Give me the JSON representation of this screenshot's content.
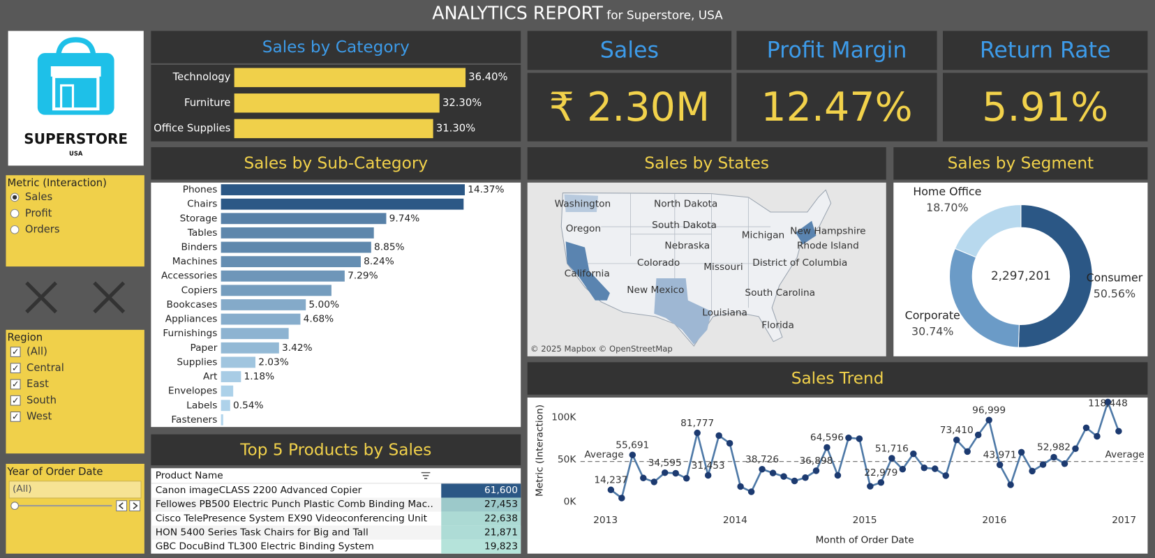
{
  "header": {
    "title": "ANALYTICS REPORT",
    "subtitle": "for Superstore, USA"
  },
  "logo": {
    "brand": "SUPERSTORE",
    "country": "USA"
  },
  "filters": {
    "metric": {
      "title": "Metric (Interaction)",
      "options": [
        "Sales",
        "Profit",
        "Orders"
      ],
      "selected": 0
    },
    "region": {
      "title": "Region",
      "options": [
        "(All)",
        "Central",
        "East",
        "South",
        "West"
      ],
      "checked": [
        true,
        true,
        true,
        true,
        true
      ]
    },
    "year": {
      "title": "Year of Order Date",
      "value": "(All)"
    }
  },
  "kpis": [
    {
      "title": "Sales",
      "value": "₹ 2.30M"
    },
    {
      "title": "Profit Margin",
      "value": "12.47%"
    },
    {
      "title": "Return Rate",
      "value": "5.91%"
    }
  ],
  "chart_data": [
    {
      "type": "bar",
      "title": "Sales by Category",
      "categories": [
        "Technology",
        "Furniture",
        "Office Supplies"
      ],
      "values": [
        36.4,
        32.3,
        31.3
      ],
      "value_labels": [
        "36.40%",
        "32.30%",
        "31.30%"
      ],
      "color": "#f0d04a"
    },
    {
      "type": "bar",
      "title": "Sales by Sub-Category",
      "categories": [
        "Phones",
        "Chairs",
        "Storage",
        "Tables",
        "Binders",
        "Machines",
        "Accessories",
        "Copiers",
        "Bookcases",
        "Appliances",
        "Furnishings",
        "Paper",
        "Supplies",
        "Art",
        "Envelopes",
        "Labels",
        "Fasteners"
      ],
      "values": [
        14.37,
        14.3,
        9.74,
        9.01,
        8.85,
        8.24,
        7.29,
        6.51,
        5.0,
        4.68,
        3.99,
        3.42,
        2.03,
        1.18,
        0.72,
        0.54,
        0.13
      ],
      "value_labels": [
        "14.37%",
        null,
        "9.74%",
        null,
        "8.85%",
        "8.24%",
        "7.29%",
        null,
        "5.00%",
        "4.68%",
        null,
        "3.42%",
        "2.03%",
        "1.18%",
        null,
        "0.54%",
        null
      ],
      "color_range": [
        "#b3d7ee",
        "#2b5785"
      ]
    },
    {
      "type": "map",
      "title": "Sales by States",
      "labels": [
        "Washington",
        "North Dakota",
        "Oregon",
        "South Dakota",
        "New Hampshire",
        "Michigan",
        "Rhode Island",
        "Nebraska",
        "Colorado",
        "District of Columbia",
        "Missouri",
        "California",
        "New Mexico",
        "South Carolina",
        "Louisiana",
        "Florida"
      ],
      "attribution": "© 2025 Mapbox © OpenStreetMap"
    },
    {
      "type": "donut",
      "title": "Sales by Segment",
      "categories": [
        "Consumer",
        "Corporate",
        "Home Office"
      ],
      "values": [
        50.56,
        30.74,
        18.7
      ],
      "value_labels": [
        "50.56%",
        "30.74%",
        "18.70%"
      ],
      "colors": [
        "#2b5785",
        "#6b9bc7",
        "#b8d9ee"
      ],
      "center": {
        "value": 2297201,
        "label": "2,297,201"
      }
    },
    {
      "type": "line",
      "title": "Sales Trend",
      "x_label": "Month of Order Date",
      "y_label": "Metric (Interaction)",
      "x": [
        2013.0417,
        2013.125,
        2013.2083,
        2013.2917,
        2013.375,
        2013.4583,
        2013.5417,
        2013.625,
        2013.7083,
        2013.7917,
        2013.875,
        2013.9583,
        2014.0417,
        2014.125,
        2014.2083,
        2014.2917,
        2014.375,
        2014.4583,
        2014.5417,
        2014.625,
        2014.7083,
        2014.7917,
        2014.875,
        2014.9583,
        2015.0417,
        2015.125,
        2015.2083,
        2015.2917,
        2015.375,
        2015.4583,
        2015.5417,
        2015.625,
        2015.7083,
        2015.7917,
        2015.875,
        2015.9583,
        2016.0417,
        2016.125,
        2016.2083,
        2016.2917,
        2016.375,
        2016.4583,
        2016.5417,
        2016.625,
        2016.7083,
        2016.7917,
        2016.875,
        2016.9583
      ],
      "values": [
        14237,
        4520,
        55691,
        28295,
        23648,
        34595,
        33946,
        27909,
        81777,
        31453,
        78629,
        69546,
        18174,
        11951,
        38726,
        34195,
        30132,
        24797,
        28765,
        36898,
        64596,
        31405,
        75973,
        74920,
        18542,
        22979,
        51716,
        38750,
        56988,
        40345,
        39262,
        31115,
        73410,
        59688,
        79412,
        96999,
        43971,
        20301,
        58872,
        36522,
        44261,
        52982,
        45264,
        63121,
        87867,
        77777,
        118448,
        83829
      ],
      "value_labels": [
        "14,237",
        null,
        "55,691",
        null,
        null,
        "34,595",
        null,
        null,
        "81,777",
        "31,453",
        null,
        null,
        null,
        null,
        "38,726",
        null,
        null,
        null,
        null,
        "36,898",
        "64,596",
        null,
        null,
        null,
        null,
        "22,979",
        "51,716",
        null,
        null,
        null,
        null,
        null,
        "73,410",
        null,
        null,
        "96,999",
        "43,971",
        null,
        null,
        null,
        null,
        "52,982",
        null,
        null,
        null,
        null,
        "118,448",
        null
      ],
      "color": "#4e79a7",
      "marker_color": "#1c3a70",
      "xlim": [
        2013,
        2017
      ],
      "xticks": [
        2013,
        2014,
        2015,
        2016,
        2017
      ],
      "ylim": [
        -16000,
        122000
      ],
      "yticks": [
        {
          "value": 0,
          "label": "0K"
        },
        {
          "value": 50000,
          "label": "50K"
        },
        {
          "value": 100000,
          "label": "100K"
        }
      ],
      "average": {
        "value": 47858,
        "label": "Average"
      }
    }
  ],
  "table": {
    "title": "Top 5 Products by Sales",
    "header": "Product Name",
    "rows": [
      {
        "name": "Canon imageCLASS 2200 Advanced Copier",
        "value": 61600,
        "label": "61,600"
      },
      {
        "name": "Fellowes PB500 Electric Punch Plastic Comb Binding Mac..",
        "value": 27453,
        "label": "27,453"
      },
      {
        "name": "Cisco TelePresence System EX90 Videoconferencing Unit",
        "value": 22638,
        "label": "22,638"
      },
      {
        "name": "HON 5400 Series Task Chairs for Big and Tall",
        "value": 21871,
        "label": "21,871"
      },
      {
        "name": "GBC DocuBind TL300 Electric Binding System",
        "value": 19823,
        "label": "19,823"
      }
    ],
    "color_range": [
      "#b5e3da",
      "#2b5785"
    ]
  }
}
